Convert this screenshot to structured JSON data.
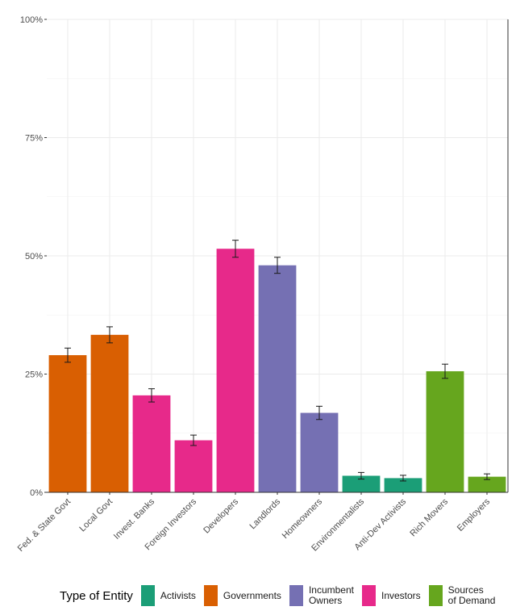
{
  "chart_data": {
    "type": "bar",
    "title": "",
    "xlabel": "",
    "ylabel": "",
    "ylim": [
      0,
      100
    ],
    "y_ticks": [
      "0%",
      "25%",
      "50%",
      "75%",
      "100%"
    ],
    "y_tick_values": [
      0,
      25,
      50,
      75,
      100
    ],
    "grid": true,
    "error_bars": true,
    "categories": [
      "Fed. & State Govt",
      "Local Govt",
      "Invest. Banks",
      "Foreign Investors",
      "Developers",
      "Landlords",
      "Homeowners",
      "Environmentalists",
      "Anti-Dev Activists",
      "Rich Movers",
      "Employers"
    ],
    "values": [
      29.0,
      33.3,
      20.5,
      11.0,
      51.5,
      48.0,
      16.8,
      3.5,
      3.0,
      25.6,
      3.3
    ],
    "errors": [
      1.5,
      1.7,
      1.4,
      1.1,
      1.8,
      1.7,
      1.4,
      0.7,
      0.6,
      1.5,
      0.6
    ],
    "groups": [
      "Governments",
      "Governments",
      "Investors",
      "Investors",
      "Investors",
      "Incumbent Owners",
      "Incumbent Owners",
      "Activists",
      "Activists",
      "Sources of Demand",
      "Sources of Demand"
    ],
    "legend": {
      "title": "Type of Entity",
      "position": "bottom",
      "items": [
        {
          "name": "Activists",
          "label": "Activists",
          "color": "#1b9e77"
        },
        {
          "name": "Governments",
          "label": "Governments",
          "color": "#d95f02"
        },
        {
          "name": "Incumbent Owners",
          "label": "Incumbent\nOwners",
          "color": "#7570b3"
        },
        {
          "name": "Investors",
          "label": "Investors",
          "color": "#e7298a"
        },
        {
          "name": "Sources of Demand",
          "label": "Sources\nof Demand",
          "color": "#66a61e"
        }
      ]
    }
  }
}
